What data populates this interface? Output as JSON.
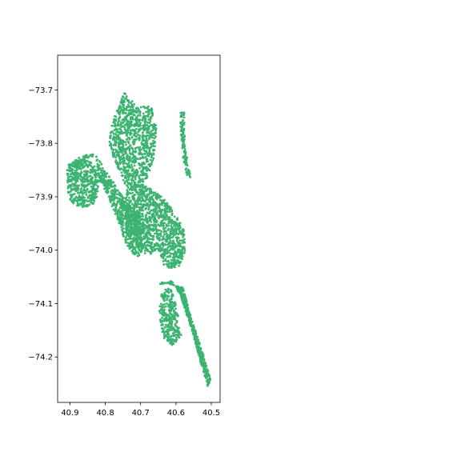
{
  "chart_data": {
    "type": "scatter",
    "title": "",
    "xlabel": "",
    "ylabel": "",
    "xlim": [
      40.935,
      40.475
    ],
    "ylim": [
      -74.285,
      -73.635
    ],
    "x_inverted": true,
    "xticks": [
      {
        "value": 40.9,
        "label": "40.9"
      },
      {
        "value": 40.8,
        "label": "40.8"
      },
      {
        "value": 40.7,
        "label": "40.7"
      },
      {
        "value": 40.6,
        "label": "40.6"
      },
      {
        "value": 40.5,
        "label": "40.5"
      }
    ],
    "yticks": [
      {
        "value": -73.7,
        "label": "−73.7"
      },
      {
        "value": -73.8,
        "label": "−73.8"
      },
      {
        "value": -73.9,
        "label": "−73.9"
      },
      {
        "value": -74.0,
        "label": "−74.0"
      },
      {
        "value": -74.1,
        "label": "−74.1"
      },
      {
        "value": -74.2,
        "label": "−74.2"
      }
    ],
    "grid": false,
    "legend": "none",
    "marker_color": "#3cb371",
    "series": [
      {
        "regions": [
          {
            "polygon": [
              [
                40.882,
                -73.872
              ],
              [
                40.87,
                -73.833
              ],
              [
                40.827,
                -73.823
              ],
              [
                40.818,
                -73.865
              ],
              [
                40.79,
                -73.902
              ],
              [
                40.762,
                -73.95
              ],
              [
                40.74,
                -73.99
              ],
              [
                40.715,
                -74.015
              ],
              [
                40.7,
                -74.01
              ],
              [
                40.69,
                -73.96
              ],
              [
                40.705,
                -73.93
              ],
              [
                40.735,
                -73.915
              ],
              [
                40.76,
                -73.89
              ],
              [
                40.8,
                -73.85
              ],
              [
                40.828,
                -73.82
              ],
              [
                40.862,
                -73.822
              ],
              [
                40.905,
                -73.84
              ]
            ],
            "count": 700
          },
          {
            "polygon": [
              [
                40.91,
                -73.85
              ],
              [
                40.9,
                -73.84
              ],
              [
                40.875,
                -73.825
              ],
              [
                40.855,
                -73.83
              ],
              [
                40.835,
                -73.838
              ],
              [
                40.815,
                -73.86
              ],
              [
                40.82,
                -73.895
              ],
              [
                40.835,
                -73.915
              ],
              [
                40.86,
                -73.92
              ],
              [
                40.89,
                -73.915
              ],
              [
                40.905,
                -73.9
              ]
            ],
            "count": 450
          },
          {
            "polygon": [
              [
                40.75,
                -73.71
              ],
              [
                40.745,
                -73.705
              ],
              [
                40.725,
                -73.72
              ],
              [
                40.715,
                -73.73
              ],
              [
                40.67,
                -73.73
              ],
              [
                40.655,
                -73.77
              ],
              [
                40.662,
                -73.83
              ],
              [
                40.685,
                -73.87
              ],
              [
                40.72,
                -73.89
              ],
              [
                40.748,
                -73.875
              ],
              [
                40.775,
                -73.83
              ],
              [
                40.79,
                -73.8
              ],
              [
                40.78,
                -73.76
              ]
            ],
            "count": 950
          },
          {
            "polygon": [
              [
                40.745,
                -73.9
              ],
              [
                40.735,
                -73.88
              ],
              [
                40.7,
                -73.875
              ],
              [
                40.67,
                -73.885
              ],
              [
                40.63,
                -73.905
              ],
              [
                40.6,
                -73.935
              ],
              [
                40.578,
                -73.96
              ],
              [
                40.573,
                -74.0
              ],
              [
                40.59,
                -74.03
              ],
              [
                40.615,
                -74.035
              ],
              [
                40.64,
                -74.025
              ],
              [
                40.65,
                -74.0
              ],
              [
                40.675,
                -74.01
              ],
              [
                40.705,
                -74.0
              ],
              [
                40.725,
                -73.97
              ],
              [
                40.74,
                -73.94
              ]
            ],
            "count": 1100
          },
          {
            "polygon": [
              [
                40.648,
                -74.065
              ],
              [
                40.612,
                -74.058
              ],
              [
                40.587,
                -74.085
              ],
              [
                40.555,
                -74.15
              ],
              [
                40.53,
                -74.21
              ],
              [
                40.51,
                -74.255
              ],
              [
                40.5,
                -74.245
              ],
              [
                40.53,
                -74.18
              ],
              [
                40.56,
                -74.12
              ],
              [
                40.58,
                -74.07
              ],
              [
                40.64,
                -74.06
              ]
            ],
            "count": 500
          },
          {
            "polygon": [
              [
                40.643,
                -74.075
              ],
              [
                40.615,
                -74.07
              ],
              [
                40.597,
                -74.11
              ],
              [
                40.585,
                -74.16
              ],
              [
                40.61,
                -74.18
              ],
              [
                40.635,
                -74.165
              ],
              [
                40.648,
                -74.12
              ]
            ],
            "count": 300
          },
          {
            "polygon": [
              [
                40.588,
                -73.74
              ],
              [
                40.575,
                -73.74
              ],
              [
                40.575,
                -73.8
              ],
              [
                40.565,
                -73.84
              ],
              [
                40.558,
                -73.865
              ],
              [
                40.57,
                -73.86
              ],
              [
                40.585,
                -73.81
              ]
            ],
            "count": 120
          }
        ]
      }
    ]
  }
}
